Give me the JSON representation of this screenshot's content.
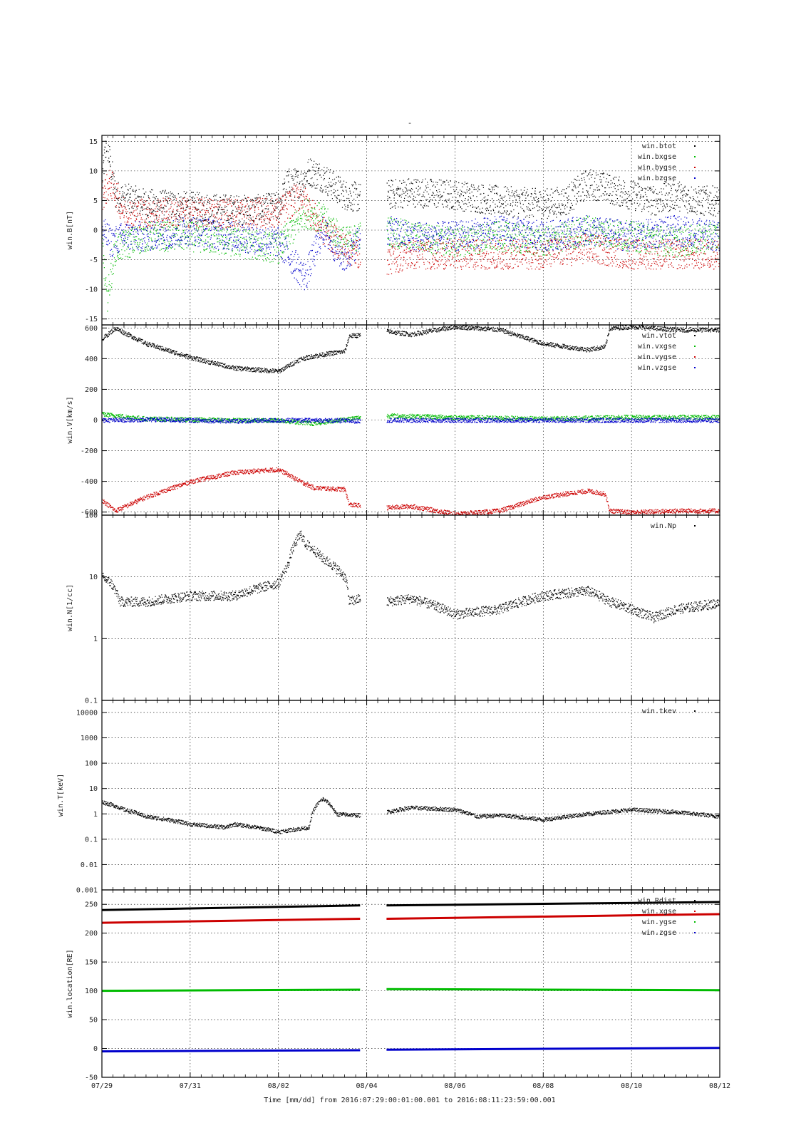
{
  "page": {
    "title_mark": "-"
  },
  "x_axis": {
    "label": "Time [mm/dd]  from 2016:07:29:00:01:00.001  to  2016:08:11:23:59:00.001",
    "range_days": [
      0,
      14
    ],
    "ticks": [
      {
        "day": 0,
        "label": "07/29"
      },
      {
        "day": 2,
        "label": "07/31"
      },
      {
        "day": 4,
        "label": "08/02"
      },
      {
        "day": 6,
        "label": "08/04"
      },
      {
        "day": 8,
        "label": "08/06"
      },
      {
        "day": 10,
        "label": "08/08"
      },
      {
        "day": 12,
        "label": "08/10"
      },
      {
        "day": 14,
        "label": "08/12"
      }
    ],
    "data_gap_days": [
      5.85,
      6.45
    ]
  },
  "colors": {
    "black": "#000000",
    "red": "#cc0000",
    "green": "#00bb00",
    "blue": "#0000cc"
  },
  "chart_data": [
    {
      "type": "scatter",
      "ylabel": "win.B[nT]",
      "ylim": [
        -16,
        16
      ],
      "yscale": "linear",
      "yticks": [
        -15,
        -10,
        -5,
        0,
        5,
        10,
        15
      ],
      "grid": true,
      "legend_position": "top-right",
      "series": [
        {
          "name": "win.btot",
          "color": "#000000",
          "x": [
            0,
            0.1,
            0.3,
            0.5,
            1,
            2,
            3,
            3.5,
            4,
            4.2,
            4.5,
            4.7,
            5,
            5.5,
            5.85,
            6.45,
            7,
            8,
            9,
            10,
            10.5,
            11,
            11.5,
            12,
            12.5,
            13,
            13.5,
            14
          ],
          "y": [
            9,
            15,
            6,
            5.5,
            4.5,
            4,
            3.5,
            3.5,
            4,
            8,
            8,
            10,
            9,
            6,
            5.5,
            6,
            6.5,
            6,
            5,
            4.5,
            5,
            8,
            7,
            6,
            5,
            6,
            5,
            5
          ]
        },
        {
          "name": "win.bxgse",
          "color": "#00bb00",
          "x": [
            0,
            0.1,
            0.3,
            1,
            2,
            3,
            4,
            4.6,
            5,
            5.5,
            5.85,
            6.45,
            7,
            8,
            9,
            10,
            11,
            12,
            13,
            14
          ],
          "y": [
            -2,
            -12,
            -3,
            -1,
            -1,
            -2,
            -3,
            3,
            2,
            -2,
            -1,
            0,
            -1,
            -2,
            -1,
            -2,
            0,
            -1,
            -2,
            -1
          ]
        },
        {
          "name": "win.bygse",
          "color": "#cc0000",
          "x": [
            0,
            0.2,
            0.5,
            1,
            2,
            3,
            4,
            4.5,
            5,
            5.5,
            5.85,
            6.45,
            7,
            8,
            9,
            10,
            11,
            12,
            13,
            14
          ],
          "y": [
            6,
            8,
            3,
            3,
            3,
            3,
            3,
            6,
            0,
            -3,
            -4,
            -5,
            -4,
            -4,
            -4,
            -4,
            -3,
            -4,
            -4,
            -4
          ]
        },
        {
          "name": "win.bzgse",
          "color": "#0000cc",
          "x": [
            0,
            0.2,
            0.5,
            1,
            2,
            3,
            4,
            4.6,
            5,
            5.5,
            5.85,
            6.45,
            7,
            8,
            9,
            10,
            11,
            12,
            13,
            14
          ],
          "y": [
            0,
            -2,
            -1,
            -1,
            0,
            -1,
            -2,
            -8,
            0,
            -5,
            -1,
            0,
            -1,
            -1,
            0,
            -1,
            0,
            -1,
            0,
            -1
          ]
        }
      ]
    },
    {
      "type": "scatter",
      "ylabel": "win.V[km/s]",
      "ylim": [
        -620,
        620
      ],
      "yscale": "linear",
      "yticks": [
        -600,
        -400,
        -200,
        0,
        200,
        400,
        600
      ],
      "grid": true,
      "legend_position": "top-right",
      "series": [
        {
          "name": "win.vtot",
          "color": "#000000",
          "x": [
            0,
            0.3,
            1,
            2,
            3,
            4,
            4.5,
            4.8,
            5.5,
            5.6,
            5.85,
            6.45,
            7,
            8,
            9,
            10,
            11,
            11.4,
            11.5,
            12,
            13,
            14
          ],
          "y": [
            530,
            600,
            500,
            410,
            340,
            320,
            400,
            420,
            450,
            550,
            555,
            580,
            560,
            610,
            590,
            500,
            460,
            480,
            600,
            610,
            590,
            590
          ]
        },
        {
          "name": "win.vxgse",
          "color": "#00bb00",
          "x": [
            0,
            1,
            2,
            3,
            4,
            4.8,
            5.85,
            6.45,
            8,
            10,
            12,
            14
          ],
          "y": [
            40,
            10,
            5,
            0,
            0,
            -20,
            20,
            30,
            20,
            10,
            20,
            20
          ]
        },
        {
          "name": "win.vygse",
          "color": "#cc0000",
          "x": [
            0,
            0.3,
            1,
            2,
            3,
            4,
            4.5,
            4.8,
            5.5,
            5.6,
            5.85,
            6.45,
            7,
            8,
            9,
            10,
            11,
            11.4,
            11.5,
            12,
            13,
            14
          ],
          "y": [
            -520,
            -590,
            -500,
            -400,
            -340,
            -320,
            -400,
            -440,
            -450,
            -550,
            -555,
            -570,
            -560,
            -610,
            -590,
            -500,
            -460,
            -480,
            -590,
            -600,
            -590,
            -590
          ]
        },
        {
          "name": "win.vzgse",
          "color": "#0000cc",
          "x": [
            0,
            1,
            2,
            3,
            4,
            5,
            5.85,
            6.45,
            8,
            10,
            12,
            14
          ],
          "y": [
            0,
            5,
            0,
            -5,
            0,
            0,
            -5,
            0,
            0,
            0,
            0,
            0
          ]
        }
      ]
    },
    {
      "type": "scatter",
      "ylabel": "win.N[1/cc]",
      "ylim": [
        0.1,
        100
      ],
      "yscale": "log",
      "yticks": [
        0.1,
        1,
        10,
        100
      ],
      "grid": true,
      "legend_position": "top-right",
      "series": [
        {
          "name": "win.Np",
          "color": "#000000",
          "x": [
            0,
            0.2,
            0.4,
            1,
            2,
            3,
            4,
            4.2,
            4.5,
            4.6,
            5,
            5.5,
            5.6,
            5.85,
            6.45,
            7,
            7.5,
            8,
            9,
            10,
            11,
            11.5,
            12,
            12.5,
            13,
            14
          ],
          "y": [
            10,
            8,
            4,
            4,
            5,
            5,
            8,
            15,
            50,
            35,
            20,
            10,
            4,
            4.5,
            4,
            4.5,
            3.5,
            2.5,
            3,
            5,
            6,
            4,
            3,
            2.2,
            3,
            3.8
          ]
        }
      ]
    },
    {
      "type": "scatter",
      "ylabel": "win.T[keV]",
      "ylim": [
        0.001,
        30000
      ],
      "yscale": "log",
      "yticks": [
        0.001,
        0.01,
        0.1,
        1,
        10,
        100,
        1000,
        10000
      ],
      "ytick_labels": [
        "0.001",
        "0.01",
        "0.1",
        "1",
        "10",
        "100",
        "1000",
        "10000"
      ],
      "grid": true,
      "legend_position": "top-right",
      "series": [
        {
          "name": "win.tkev",
          "color": "#000000",
          "x": [
            0,
            0.5,
            1,
            2,
            2.8,
            3,
            4,
            4.7,
            5,
            5.3,
            5.85,
            6.45,
            7,
            8,
            8.5,
            9,
            10,
            11,
            12,
            13,
            14
          ],
          "y": [
            3,
            1.5,
            0.8,
            0.4,
            0.3,
            0.4,
            0.2,
            0.3,
            4,
            1,
            0.9,
            1.2,
            1.8,
            1.5,
            0.8,
            0.9,
            0.6,
            1,
            1.5,
            1.2,
            0.8
          ]
        }
      ]
    },
    {
      "type": "line",
      "ylabel": "win.location[RE]",
      "ylim": [
        -50,
        275
      ],
      "yscale": "linear",
      "yticks": [
        -50,
        0,
        50,
        100,
        150,
        200,
        250
      ],
      "grid": true,
      "legend_position": "top-right",
      "series": [
        {
          "name": "win.Rdist",
          "color": "#000000",
          "x": [
            0,
            5.85,
            6.45,
            14
          ],
          "y": [
            240,
            248,
            248,
            254
          ]
        },
        {
          "name": "win.xgse",
          "color": "#cc0000",
          "x": [
            0,
            5.85,
            6.45,
            14
          ],
          "y": [
            218,
            225,
            225,
            233
          ]
        },
        {
          "name": "win.ygse",
          "color": "#00bb00",
          "x": [
            0,
            5.85,
            6.45,
            14
          ],
          "y": [
            100,
            102,
            103,
            101
          ]
        },
        {
          "name": "win.zgse",
          "color": "#0000cc",
          "x": [
            0,
            5.85,
            6.45,
            14
          ],
          "y": [
            -5,
            -3,
            -2,
            1
          ]
        }
      ]
    }
  ]
}
